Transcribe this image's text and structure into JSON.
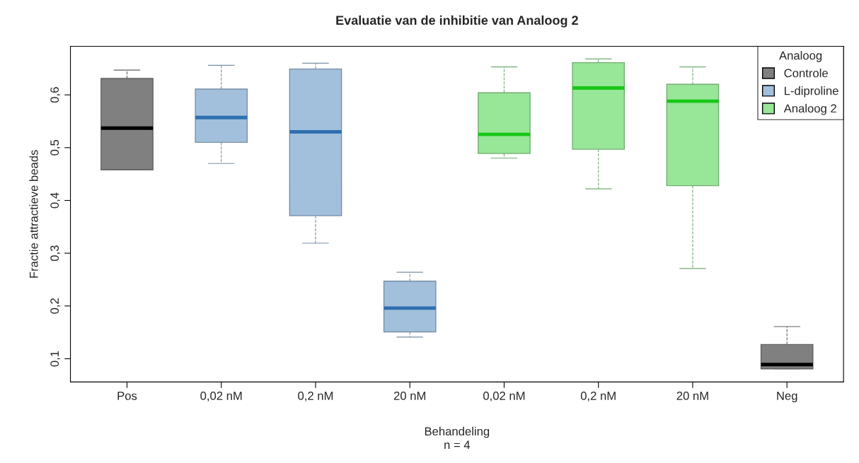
{
  "chart_data": {
    "type": "box",
    "title": "Evaluatie van de inhibitie van Analoog 2",
    "xlabel": "Behandeling\nn = 4",
    "ylabel": "Fractie attractieve beads",
    "legend_title": "Analoog",
    "legend": "top right",
    "grid": false,
    "categories": [
      "Pos",
      "0,02 nM",
      "0,2 nM",
      "20 nM",
      "0,02 nM",
      "0,2 nM",
      "20 nM",
      "Neg"
    ],
    "ylim": [
      0.056,
      0.692
    ],
    "yticks": [
      {
        "value": 0.1,
        "label": "0,1"
      },
      {
        "value": 0.2,
        "label": "0,2"
      },
      {
        "value": 0.3,
        "label": "0,3"
      },
      {
        "value": 0.4,
        "label": "0,4"
      },
      {
        "value": 0.5,
        "label": "0,5"
      },
      {
        "value": 0.6,
        "label": "0,6"
      }
    ],
    "series": [
      {
        "name": "Controle",
        "color": "#808080",
        "boxes": [
          {
            "low": 0.458,
            "q1": 0.458,
            "median": 0.537,
            "q3": 0.631,
            "high": 0.647
          },
          null,
          null,
          null,
          null,
          null,
          null,
          {
            "low": 0.081,
            "q1": 0.081,
            "median": 0.089,
            "q3": 0.127,
            "high": 0.161
          }
        ]
      },
      {
        "name": "L-diproline",
        "color": "#a2bfdc",
        "boxes": [
          null,
          {
            "low": 0.47,
            "q1": 0.51,
            "median": 0.557,
            "q3": 0.611,
            "high": 0.656
          },
          {
            "low": 0.319,
            "q1": 0.371,
            "median": 0.53,
            "q3": 0.649,
            "high": 0.66
          },
          {
            "low": 0.141,
            "q1": 0.151,
            "median": 0.196,
            "q3": 0.247,
            "high": 0.264
          },
          null,
          null,
          null,
          null
        ]
      },
      {
        "name": "Analoog 2",
        "color": "#98e698",
        "boxes": [
          null,
          null,
          null,
          null,
          {
            "low": 0.48,
            "q1": 0.489,
            "median": 0.525,
            "q3": 0.604,
            "high": 0.653
          },
          {
            "low": 0.422,
            "q1": 0.497,
            "median": 0.613,
            "q3": 0.661,
            "high": 0.668
          },
          {
            "low": 0.271,
            "q1": 0.428,
            "median": 0.588,
            "q3": 0.62,
            "high": 0.653
          },
          null
        ]
      }
    ]
  }
}
